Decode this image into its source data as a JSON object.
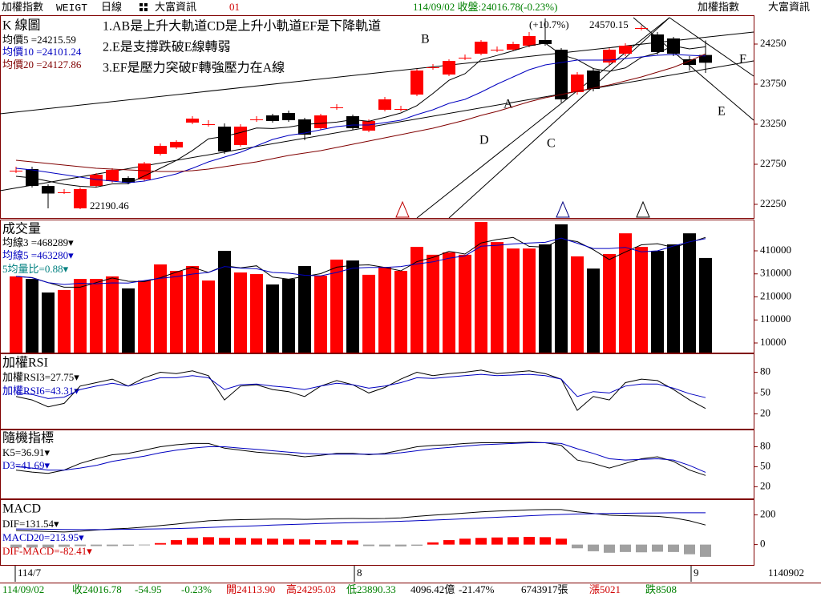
{
  "header": {
    "name": "加權指數",
    "code": "WEIGT",
    "period": "日線",
    "vendor": "大富資訊",
    "no": "01",
    "quote": "114/09/02 收盤:24016.78(-0.23%)",
    "name_right": "加權指數",
    "vendor_right": "大富資訊"
  },
  "xaxis": {
    "labels": [
      "114/7",
      "8",
      "9"
    ],
    "end": "1140902"
  },
  "status": [
    "114/09/02",
    "收24016.78",
    "-54.95",
    "-0.23%",
    "開24113.90",
    "高24295.03",
    "低23890.33",
    "4096.42億",
    "-21.47%",
    "6743917張",
    "漲5021",
    "跌8508"
  ],
  "chart_data": [
    {
      "type": "candlestick",
      "title": "K 線圖",
      "up_color": "#ff0000",
      "down_color": "#000000",
      "notes": [
        "1.AB是上升大軌道CD是上升小軌道EF是下降軌道",
        "2.E是支撐跌破E線轉弱",
        "3.EF是壓力突破F轉強壓力在A線"
      ],
      "high_note": "(+10.7%)",
      "letters": [
        "A",
        "B",
        "C",
        "D",
        "E",
        "F"
      ],
      "ylim": [
        22080,
        24600
      ],
      "yticks": [
        22250,
        22750,
        23250,
        23750,
        24250
      ],
      "open": [
        22660,
        22690,
        22480,
        22395,
        22200,
        22480,
        22540,
        22580,
        22560,
        22880,
        22960,
        23270,
        23245,
        23220,
        22990,
        23305,
        23360,
        23390,
        23310,
        23200,
        23455,
        23350,
        23170,
        23430,
        23435,
        23620,
        23955,
        23870,
        24075,
        24130,
        24175,
        24180,
        24230,
        24300,
        24180,
        23650,
        23920,
        24020,
        24130,
        24440,
        24370,
        24320,
        24060,
        24113.9
      ],
      "high": [
        22720,
        22720,
        22500,
        22440,
        22460,
        22640,
        22700,
        22600,
        22780,
        23010,
        23050,
        23350,
        23300,
        23260,
        23250,
        23350,
        23380,
        23420,
        23330,
        23380,
        23500,
        23370,
        23310,
        23590,
        23480,
        23940,
        24000,
        24060,
        24120,
        24300,
        24220,
        24280,
        24400,
        24570.15,
        24200,
        23900,
        23950,
        24200,
        24260,
        24480,
        24400,
        24340,
        24100,
        24295.03
      ],
      "low": [
        22640,
        22460,
        22200,
        22380,
        22190.46,
        22460,
        22520,
        22500,
        22540,
        22860,
        22940,
        23250,
        23220,
        22880,
        22970,
        23280,
        23270,
        23280,
        23050,
        23180,
        23430,
        23180,
        23150,
        23410,
        23410,
        23600,
        23930,
        23850,
        24050,
        24110,
        24150,
        24160,
        24210,
        24230,
        23520,
        23620,
        23660,
        23990,
        24100,
        24420,
        24120,
        24100,
        23920,
        23890.33
      ],
      "close": [
        22670,
        22480,
        22385,
        22400,
        22440,
        22620,
        22680,
        22520,
        22760,
        22980,
        23030,
        23320,
        23250,
        22910,
        23220,
        23310,
        23290,
        23300,
        23120,
        23360,
        23460,
        23200,
        23290,
        23560,
        23440,
        23920,
        23960,
        24040,
        24080,
        24280,
        24180,
        24250,
        24350,
        24250,
        23560,
        23870,
        23690,
        24180,
        24230,
        24450,
        24150,
        24130,
        23990,
        24016.78
      ],
      "series": [
        {
          "label": "均價5 =24215.59",
          "color": "#000000",
          "values": [
            22600,
            22580,
            22540,
            22500,
            22475,
            22465,
            22505,
            22509,
            22604,
            22700,
            22798,
            22922,
            23068,
            23098,
            23146,
            23202,
            23196,
            23214,
            23248,
            23260,
            23276,
            23306,
            23286,
            23336,
            23390,
            23482,
            23634,
            23798,
            23880,
            24056,
            24108,
            24166,
            24228,
            24262,
            24118,
            24056,
            23944,
            23910,
            23952,
            24084,
            24140,
            24228,
            24190,
            24215.59
          ]
        },
        {
          "label": "均價10 =24101.24",
          "color": "#0000c0",
          "values": [
            22700,
            22680,
            22650,
            22620,
            22590,
            22560,
            22540,
            22520,
            22540,
            22582,
            22630,
            22700,
            22780,
            22840,
            22900,
            22980,
            23060,
            23110,
            23140,
            23180,
            23220,
            23240,
            23240,
            23270,
            23300,
            23370,
            23430,
            23510,
            23560,
            23650,
            23750,
            23840,
            23930,
            23990,
            24020,
            24050,
            24050,
            24050,
            24070,
            24090,
            24110,
            24120,
            24110,
            24101.24
          ]
        },
        {
          "label": "均價20 =24127.86",
          "color": "#800000",
          "values": [
            22800,
            22780,
            22760,
            22740,
            22720,
            22700,
            22690,
            22680,
            22670,
            22660,
            22660,
            22670,
            22690,
            22720,
            22750,
            22780,
            22820,
            22860,
            22890,
            22920,
            22960,
            23000,
            23040,
            23080,
            23120,
            23160,
            23200,
            23250,
            23300,
            23360,
            23410,
            23470,
            23530,
            23580,
            23620,
            23660,
            23700,
            23740,
            23790,
            23840,
            23900,
            23960,
            24040,
            24127.86
          ]
        }
      ]
    },
    {
      "type": "volume",
      "title": "成交量",
      "ylim": [
        -31700,
        542200
      ],
      "yticks": [
        10000,
        110000,
        210000,
        310000,
        410000
      ],
      "ratio": "5均量比=0.88▾",
      "values": [
        299000,
        288000,
        229000,
        240000,
        288000,
        288000,
        299000,
        247000,
        281000,
        351000,
        323000,
        344000,
        281000,
        410000,
        316000,
        309000,
        264000,
        288000,
        344000,
        302000,
        372000,
        368000,
        306000,
        340000,
        323000,
        427000,
        393000,
        403000,
        393000,
        535000,
        448000,
        420000,
        420000,
        438000,
        525000,
        386000,
        333000,
        396000,
        486000,
        427000,
        410000,
        438000,
        486000,
        379000
      ],
      "series": [
        {
          "label": "均線3 =468289▾",
          "color": "#000000",
          "values": [
            299000,
            294000,
            272000,
            252000,
            252000,
            272000,
            292000,
            278000,
            276000,
            293000,
            318000,
            339000,
            316000,
            345000,
            336000,
            345000,
            296000,
            287000,
            299000,
            311000,
            339000,
            347000,
            349000,
            338000,
            323000,
            363000,
            381000,
            408000,
            396000,
            444000,
            459000,
            468000,
            429000,
            426000,
            461000,
            450000,
            415000,
            372000,
            405000,
            436000,
            441000,
            425000,
            445000,
            468289
          ]
        },
        {
          "label": "均線5 =463280▾",
          "color": "#0000c0",
          "values": [
            299000,
            293000,
            272000,
            264000,
            269000,
            267000,
            271000,
            270000,
            281000,
            291000,
            298000,
            309000,
            316000,
            342000,
            335000,
            332000,
            316000,
            313000,
            304000,
            301000,
            316000,
            335000,
            338000,
            338000,
            342000,
            353000,
            362000,
            378000,
            388000,
            430000,
            434000,
            440000,
            444000,
            447000,
            465000,
            443000,
            420000,
            420000,
            425000,
            406000,
            410000,
            431000,
            449000,
            463280
          ]
        }
      ]
    },
    {
      "type": "line",
      "title": "加權RSI",
      "ylim": [
        -1.5,
        106
      ],
      "yticks": [
        20,
        50,
        80
      ],
      "series": [
        {
          "label": "加權RSI3=27.75▾",
          "color": "#000000",
          "values": [
            45,
            40,
            30,
            35,
            60,
            65,
            70,
            60,
            72,
            80,
            78,
            82,
            75,
            40,
            60,
            62,
            55,
            52,
            45,
            60,
            68,
            62,
            50,
            58,
            70,
            80,
            75,
            78,
            80,
            83,
            78,
            80,
            82,
            78,
            70,
            25,
            45,
            40,
            65,
            70,
            68,
            55,
            40,
            27.75
          ]
        },
        {
          "label": "加權RSI6=43.31▾",
          "color": "#0000c0",
          "values": [
            50,
            48,
            42,
            44,
            55,
            60,
            64,
            60,
            66,
            72,
            72,
            75,
            72,
            55,
            62,
            63,
            60,
            58,
            55,
            60,
            64,
            62,
            57,
            60,
            65,
            72,
            71,
            73,
            75,
            77,
            75,
            76,
            77,
            75,
            70,
            45,
            52,
            50,
            60,
            63,
            63,
            57,
            49,
            43.31
          ]
        }
      ]
    },
    {
      "type": "line",
      "title": "隨機指標",
      "ylim": [
        2.4,
        104.7
      ],
      "yticks": [
        20,
        50,
        80
      ],
      "series": [
        {
          "label": "K5=36.91▾",
          "color": "#000000",
          "values": [
            45,
            42,
            40,
            45,
            55,
            62,
            68,
            70,
            75,
            80,
            83,
            85,
            85,
            78,
            75,
            72,
            70,
            68,
            65,
            67,
            70,
            70,
            68,
            70,
            75,
            80,
            82,
            83,
            85,
            86,
            86,
            86,
            87,
            86,
            82,
            60,
            55,
            48,
            55,
            62,
            65,
            58,
            45,
            36.91
          ]
        },
        {
          "label": "D3=41.69▾",
          "color": "#0000c0",
          "values": [
            50,
            48,
            45,
            45,
            48,
            52,
            58,
            62,
            66,
            71,
            75,
            78,
            80,
            80,
            78,
            76,
            74,
            72,
            70,
            69,
            69,
            69,
            69,
            69,
            71,
            74,
            77,
            79,
            81,
            83,
            84,
            85,
            86,
            86,
            85,
            77,
            70,
            62,
            60,
            61,
            62,
            60,
            52,
            41.69
          ]
        }
      ]
    },
    {
      "type": "macd",
      "title": "MACD",
      "ylim": [
        -137,
        300
      ],
      "yticks": [
        0,
        200
      ],
      "up_color": "#ff0000",
      "down_color": "#a0a0a0",
      "osc_label": "DIF-MACD=-82.41▾",
      "osc": [
        -20,
        -20,
        -20,
        -15,
        -10,
        -10,
        -10,
        -8,
        -5,
        10,
        30,
        45,
        50,
        45,
        45,
        42,
        40,
        38,
        35,
        30,
        30,
        28,
        -10,
        -12,
        -12,
        -8,
        15,
        30,
        40,
        45,
        48,
        50,
        52,
        50,
        40,
        -25,
        -45,
        -55,
        -50,
        -52,
        -48,
        -50,
        -65,
        -82.41
      ],
      "series": [
        {
          "label": "DIF=131.54▾",
          "color": "#000000",
          "values": [
            95,
            92,
            88,
            85,
            90,
            98,
            105,
            110,
            118,
            128,
            138,
            150,
            160,
            165,
            168,
            170,
            172,
            172,
            170,
            172,
            175,
            176,
            175,
            176,
            180,
            190,
            198,
            205,
            212,
            220,
            226,
            230,
            234,
            236,
            236,
            220,
            210,
            198,
            195,
            192,
            190,
            180,
            160,
            131.54
          ]
        },
        {
          "label": "MACD20=213.95▾",
          "color": "#0000c0",
          "values": [
            105,
            104,
            103,
            102,
            101,
            101,
            102,
            103,
            104,
            106,
            108,
            111,
            115,
            119,
            123,
            127,
            131,
            135,
            138,
            142,
            145,
            148,
            151,
            154,
            157,
            161,
            165,
            169,
            174,
            179,
            184,
            189,
            194,
            199,
            203,
            206,
            208,
            210,
            211,
            212,
            213,
            214,
            214,
            213.95
          ]
        }
      ]
    }
  ]
}
